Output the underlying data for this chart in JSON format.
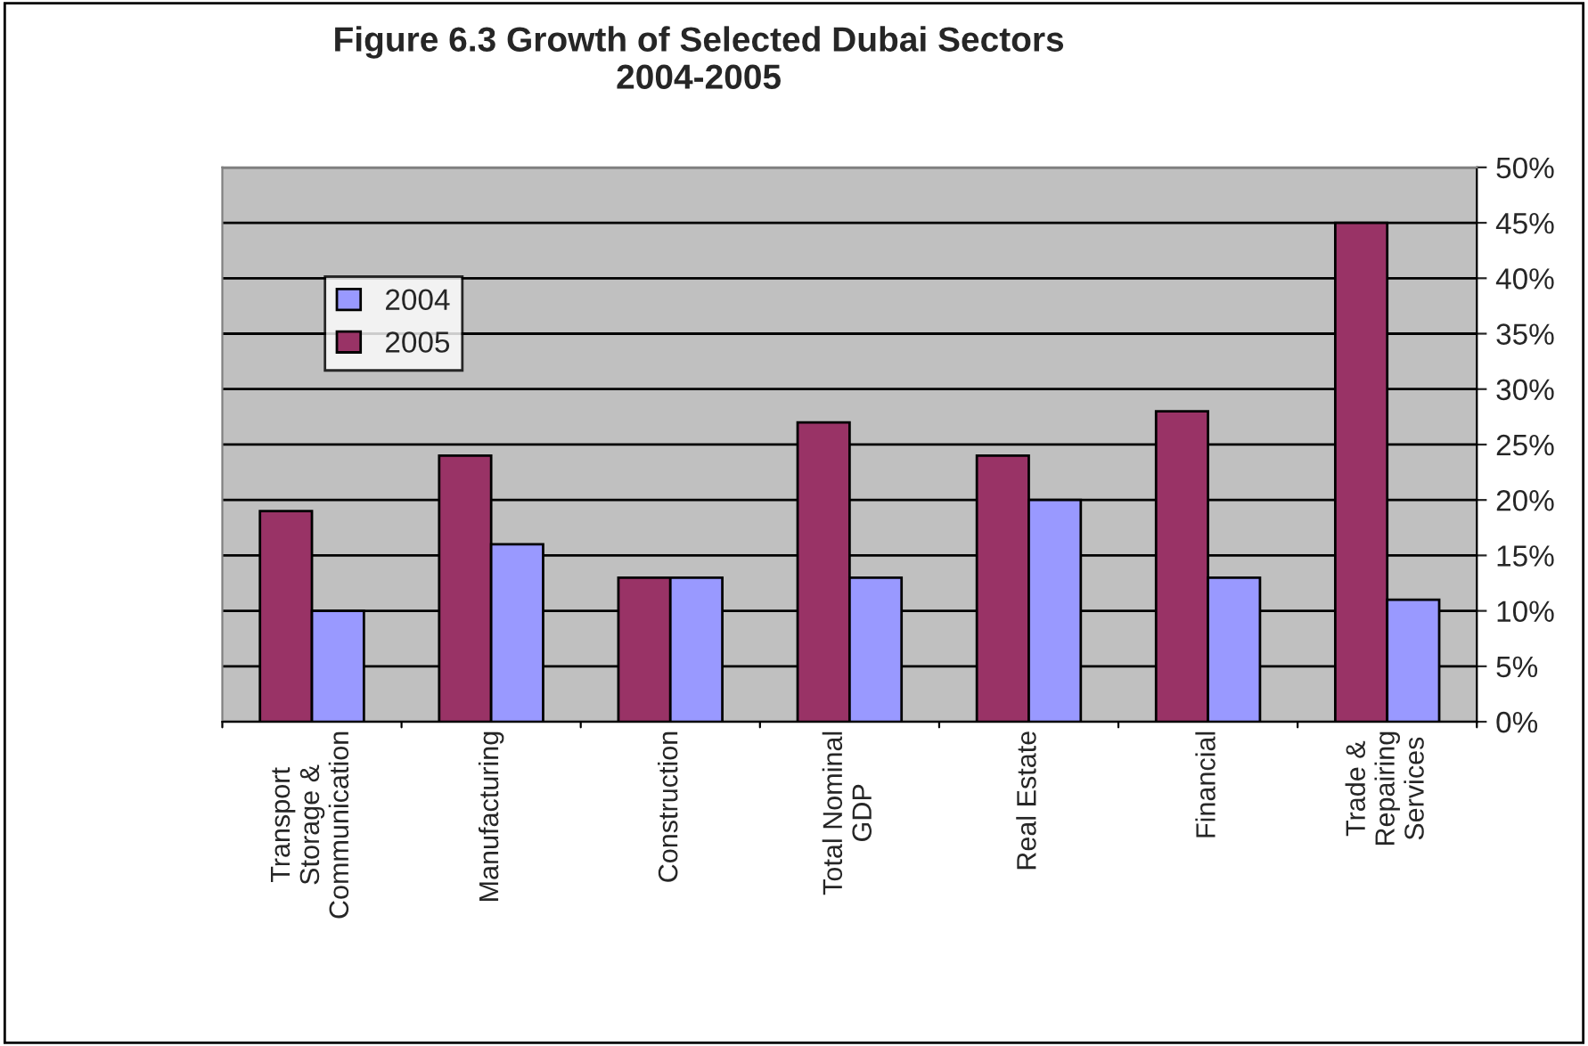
{
  "chart_data": {
    "type": "bar",
    "title": "Figure 6.3 Growth of Selected Dubai Sectors\n2004-2005",
    "categories": [
      "Transport\nStorage &\nCommunication",
      "Manufacturing",
      "Construction",
      "Total Nominal\nGDP",
      "Real Estate",
      "Financial",
      "Trade &\nRepairing\nServices"
    ],
    "series": [
      {
        "name": "2005",
        "color": "#993366",
        "values": [
          19,
          24,
          13,
          27,
          24,
          28,
          45
        ]
      },
      {
        "name": "2004",
        "color": "#9999ff",
        "values": [
          10,
          16,
          13,
          13,
          20,
          13,
          11
        ]
      }
    ],
    "ylim": [
      0,
      50
    ],
    "yticks": [
      {
        "value": 0,
        "label": "0%"
      },
      {
        "value": 5,
        "label": "5%"
      },
      {
        "value": 10,
        "label": "10%"
      },
      {
        "value": 15,
        "label": "15%"
      },
      {
        "value": 20,
        "label": "20%"
      },
      {
        "value": 25,
        "label": "25%"
      },
      {
        "value": 30,
        "label": "30%"
      },
      {
        "value": 35,
        "label": "35%"
      },
      {
        "value": 40,
        "label": "40%"
      },
      {
        "value": 45,
        "label": "45%"
      },
      {
        "value": 50,
        "label": "50%"
      }
    ],
    "grid": "y",
    "legend": "top left"
  }
}
